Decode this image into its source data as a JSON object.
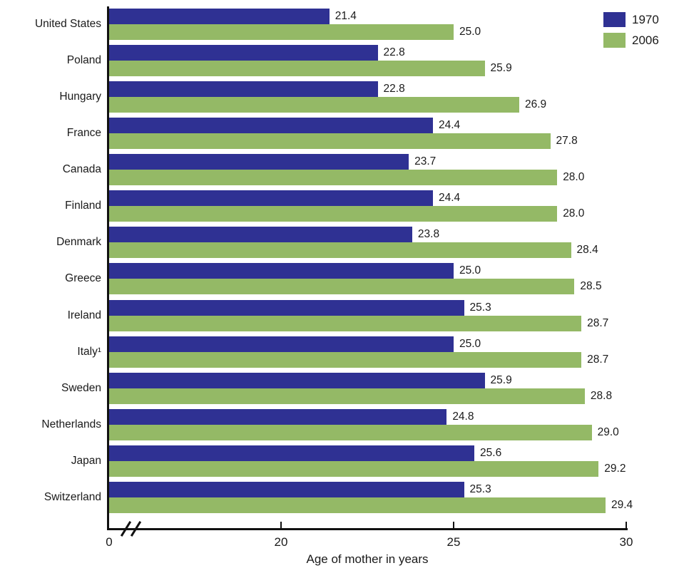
{
  "chart_data": {
    "type": "bar",
    "orientation": "horizontal",
    "xlabel": "Age of mother in years",
    "categories": [
      "United States",
      "Poland",
      "Hungary",
      "France",
      "Canada",
      "Finland",
      "Denmark",
      "Greece",
      "Ireland",
      "Italy¹",
      "Sweden",
      "Netherlands",
      "Japan",
      "Switzerland"
    ],
    "series": [
      {
        "name": "1970",
        "color": "#2F3193",
        "values": [
          21.4,
          22.8,
          22.8,
          24.4,
          23.7,
          24.4,
          23.8,
          25.0,
          25.3,
          25.0,
          25.9,
          24.8,
          25.6,
          25.3
        ]
      },
      {
        "name": "2006",
        "color": "#94B966",
        "values": [
          25.0,
          25.9,
          26.9,
          27.8,
          28.0,
          28.0,
          28.4,
          28.5,
          28.7,
          28.7,
          28.8,
          29.0,
          29.2,
          29.4
        ]
      }
    ],
    "x_ticks": [
      0,
      20,
      25,
      30
    ],
    "xlim": [
      0,
      30
    ],
    "axis_break_after_zero": true,
    "grid": false,
    "legend_position": "top-right",
    "value_labels_decimals": 1
  },
  "axis_color": "#111111",
  "background_color": "#ffffff"
}
